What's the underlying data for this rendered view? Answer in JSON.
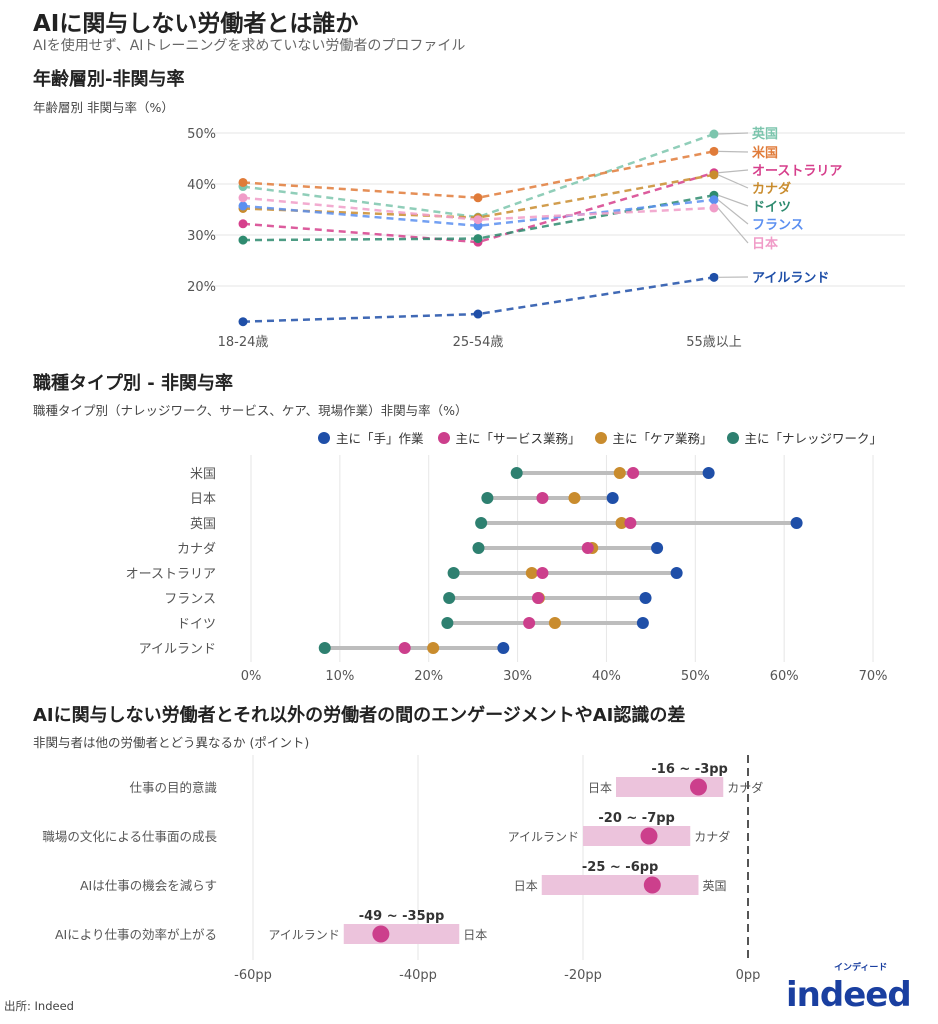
{
  "header": {
    "title": "AIに関与しない労働者とは誰か",
    "subtitle": "AIを使用せず、AIトレーニングを求めていない労働者のプロファイル"
  },
  "chart_data": [
    {
      "type": "line",
      "title": "年齢層別-非関与率",
      "ylabel": "年齢層別 非関与率（%）",
      "categories": [
        "18-24歳",
        "25-54歳",
        "55歳以上"
      ],
      "yticks": [
        "20%",
        "30%",
        "40%",
        "50%"
      ],
      "ylim": [
        12,
        52
      ],
      "grid": true,
      "legend": "right-end labels",
      "series": [
        {
          "name": "英国",
          "color": "#7cc5ad",
          "values": [
            39.5,
            33.5,
            49.8
          ]
        },
        {
          "name": "米国",
          "color": "#e07b39",
          "values": [
            40.3,
            37.3,
            46.4
          ]
        },
        {
          "name": "オーストラリア",
          "color": "#d63f8c",
          "values": [
            32.2,
            28.6,
            42.2
          ]
        },
        {
          "name": "カナダ",
          "color": "#c98c2e",
          "values": [
            35.2,
            33.4,
            41.8
          ]
        },
        {
          "name": "ドイツ",
          "color": "#2e8b6f",
          "values": [
            29.0,
            29.3,
            37.8
          ]
        },
        {
          "name": "フランス",
          "color": "#5b8ff0",
          "values": [
            35.7,
            31.8,
            36.9
          ]
        },
        {
          "name": "日本",
          "color": "#f09cc8",
          "values": [
            37.3,
            33.0,
            35.3
          ]
        },
        {
          "name": "アイルランド",
          "color": "#1f4fa8",
          "values": [
            13.0,
            14.5,
            21.7
          ]
        }
      ]
    },
    {
      "type": "dumbbell",
      "title": "職種タイプ別 - 非関与率",
      "subtitle": "職種タイプ別（ナレッジワーク、サービス、ケア、現場作業）非関与率（%）",
      "categories": [
        "米国",
        "日本",
        "英国",
        "カナダ",
        "オーストラリア",
        "フランス",
        "ドイツ",
        "アイルランド"
      ],
      "xticks": [
        "0%",
        "10%",
        "20%",
        "30%",
        "40%",
        "50%",
        "60%",
        "70%"
      ],
      "xlim": [
        0,
        70
      ],
      "grid": true,
      "legend": "top",
      "series": [
        {
          "name": "主に「手」作業",
          "color": "#1f4fa8",
          "values": [
            51.5,
            40.7,
            61.4,
            45.7,
            47.9,
            44.4,
            44.1,
            28.4
          ]
        },
        {
          "name": "主に「サービス業務」",
          "color": "#cc3f8c",
          "values": [
            43.0,
            32.8,
            42.7,
            37.9,
            32.8,
            32.3,
            31.3,
            17.3
          ]
        },
        {
          "name": "主に「ケア業務」",
          "color": "#c98c2e",
          "values": [
            41.5,
            36.4,
            41.7,
            38.4,
            31.6,
            32.4,
            34.2,
            20.5
          ]
        },
        {
          "name": "主に「ナレッジワーク」",
          "color": "#2e8070",
          "values": [
            29.9,
            26.6,
            25.9,
            25.6,
            22.8,
            22.3,
            22.1,
            8.3
          ]
        }
      ]
    },
    {
      "type": "range",
      "title": "AIに関与しない労働者とそれ以外の労働者の間のエンゲージメントやAI認識の差",
      "subtitle": "非関与者は他の労働者とどう異なるか (ポイント)",
      "xticks": [
        "-60pp",
        "-40pp",
        "-20pp",
        "0pp"
      ],
      "xlim": [
        -60,
        0
      ],
      "color": "#cc3f8c",
      "rows": [
        {
          "label": "仕事の目的意識",
          "min": -16,
          "max": -3,
          "mid": -6,
          "range_label": "-16 ~ -3pp",
          "min_country": "日本",
          "max_country": "カナダ"
        },
        {
          "label": "職場の文化による仕事面の成長",
          "min": -20,
          "max": -7,
          "mid": -12,
          "range_label": "-20 ~ -7pp",
          "min_country": "アイルランド",
          "max_country": "カナダ"
        },
        {
          "label": "AIは仕事の機会を減らす",
          "min": -25,
          "max": -6,
          "mid": -11.6,
          "range_label": "-25 ~ -6pp",
          "min_country": "日本",
          "max_country": "英国"
        },
        {
          "label": "AIにより仕事の効率が上がる",
          "min": -49,
          "max": -35,
          "mid": -44.5,
          "range_label": "-49 ~ -35pp",
          "min_country": "アイルランド",
          "max_country": "日本"
        }
      ]
    }
  ],
  "footer": {
    "source": "出所: Indeed",
    "logo_text": "indeed",
    "logo_kana": "インディード"
  }
}
